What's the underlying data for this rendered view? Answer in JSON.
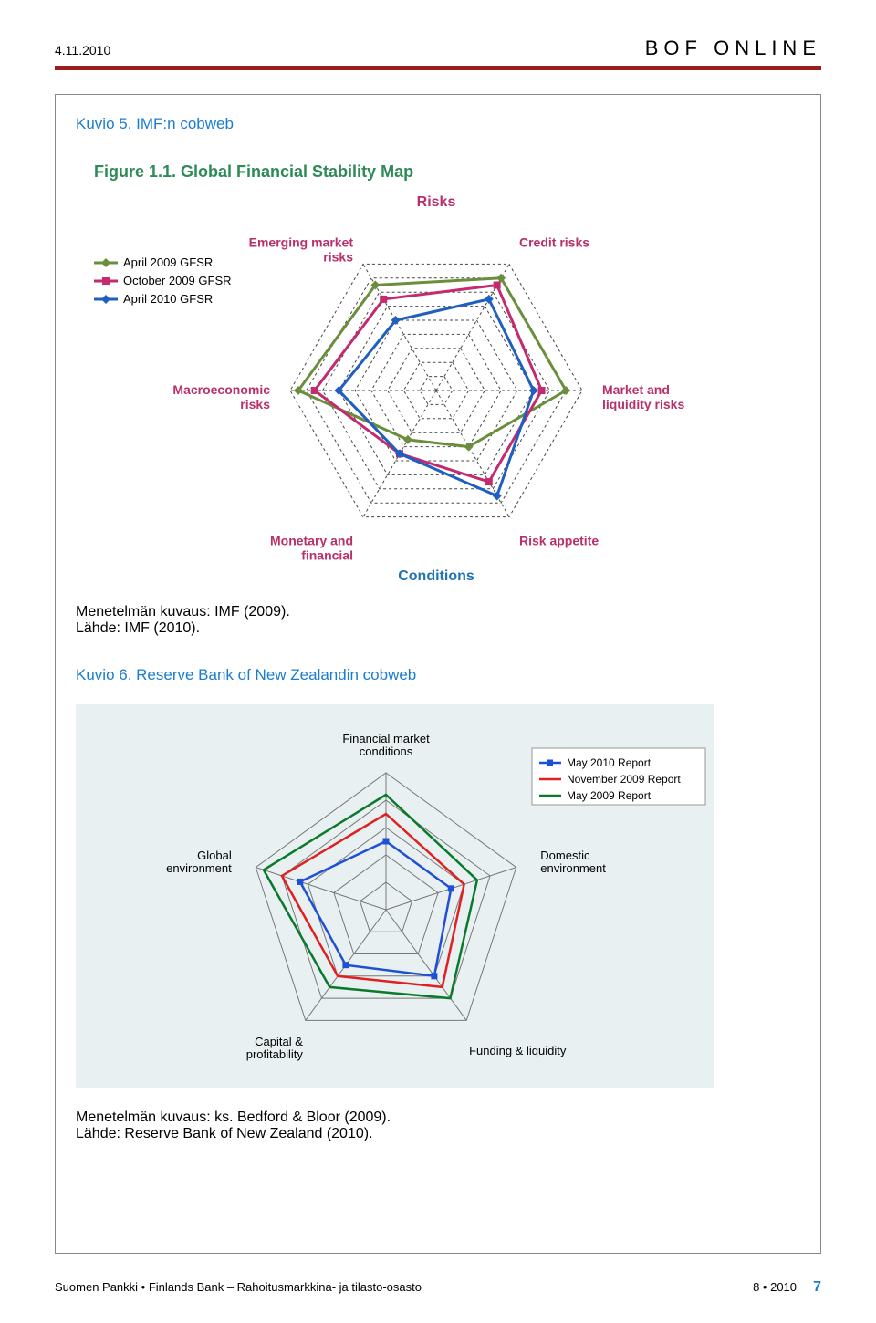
{
  "header": {
    "date": "4.11.2010",
    "site_title": "BOF ONLINE"
  },
  "rule_color": "#9a1e1e",
  "figure5": {
    "caption": "Kuvio 5. IMF:n cobweb",
    "inner_title": "Figure 1.1. Global Financial Stability Map",
    "inner_title_color": "#2e8b57",
    "top_group_label": "Risks",
    "bottom_group_label": "Conditions",
    "group_label_color": "#2073b5",
    "axis_labels": [
      "Credit risks",
      "Market and liquidity risks",
      "Risk appetite",
      "Monetary and financial",
      "Macroeconomic risks",
      "Emerging market risks"
    ],
    "axis_label_color": "#b82f6a",
    "legend": [
      {
        "label": "April 2009 GFSR",
        "color": "#6a8f3c",
        "marker": "diamond"
      },
      {
        "label": "October 2009 GFSR",
        "color": "#c42a6e",
        "marker": "square"
      },
      {
        "label": "April 2010 GFSR",
        "color": "#1f5fbf",
        "marker": "diamond"
      }
    ],
    "rings": 9,
    "grid_color": "#444444",
    "series": {
      "apr2009": [
        8.0,
        8.0,
        4.0,
        3.5,
        8.5,
        7.5
      ],
      "oct2009": [
        7.5,
        6.5,
        6.5,
        4.5,
        7.5,
        6.5
      ],
      "apr2010": [
        6.5,
        6.0,
        7.5,
        4.5,
        6.0,
        5.0
      ]
    },
    "series_colors": {
      "apr2009": "#6a8f3c",
      "oct2009": "#c42a6e",
      "apr2010": "#1f5fbf"
    },
    "method": "Menetelmän kuvaus: IMF (2009).",
    "source": "Lähde: IMF (2010)."
  },
  "figure6": {
    "caption": "Kuvio 6. Reserve Bank of New Zealandin cobweb",
    "background_color": "#e8f0f1",
    "axis_labels": [
      "Financial market conditions",
      "Domestic environment",
      "Funding & liquidity",
      "Capital & profitability",
      "Global environment"
    ],
    "axis_label_color": "#000000",
    "legend": [
      {
        "label": "May 2010 Report",
        "color": "#1f4fd6",
        "marker": "square"
      },
      {
        "label": "November 2009 Report",
        "color": "#e02020",
        "marker": "line"
      },
      {
        "label": "May 2009 Report",
        "color": "#0a7a2a",
        "marker": "line"
      }
    ],
    "rings": 5,
    "grid_color": "#777777",
    "series": {
      "may2010": [
        2.5,
        2.5,
        3.0,
        2.5,
        3.3
      ],
      "nov2009": [
        3.5,
        3.0,
        3.5,
        3.0,
        4.0
      ],
      "may2009": [
        4.2,
        3.5,
        4.0,
        3.5,
        4.7
      ]
    },
    "series_colors": {
      "may2010": "#1f4fd6",
      "nov2009": "#e02020",
      "may2009": "#0a7a2a"
    },
    "method": "Menetelmän kuvaus: ks. Bedford & Bloor (2009).",
    "source": "Lähde: Reserve Bank of New Zealand (2010)."
  },
  "footer": {
    "left": "Suomen Pankki • Finlands Bank – Rahoitusmarkkina- ja tilasto-osasto",
    "issue": "8 • 2010",
    "pagenum": "7"
  }
}
